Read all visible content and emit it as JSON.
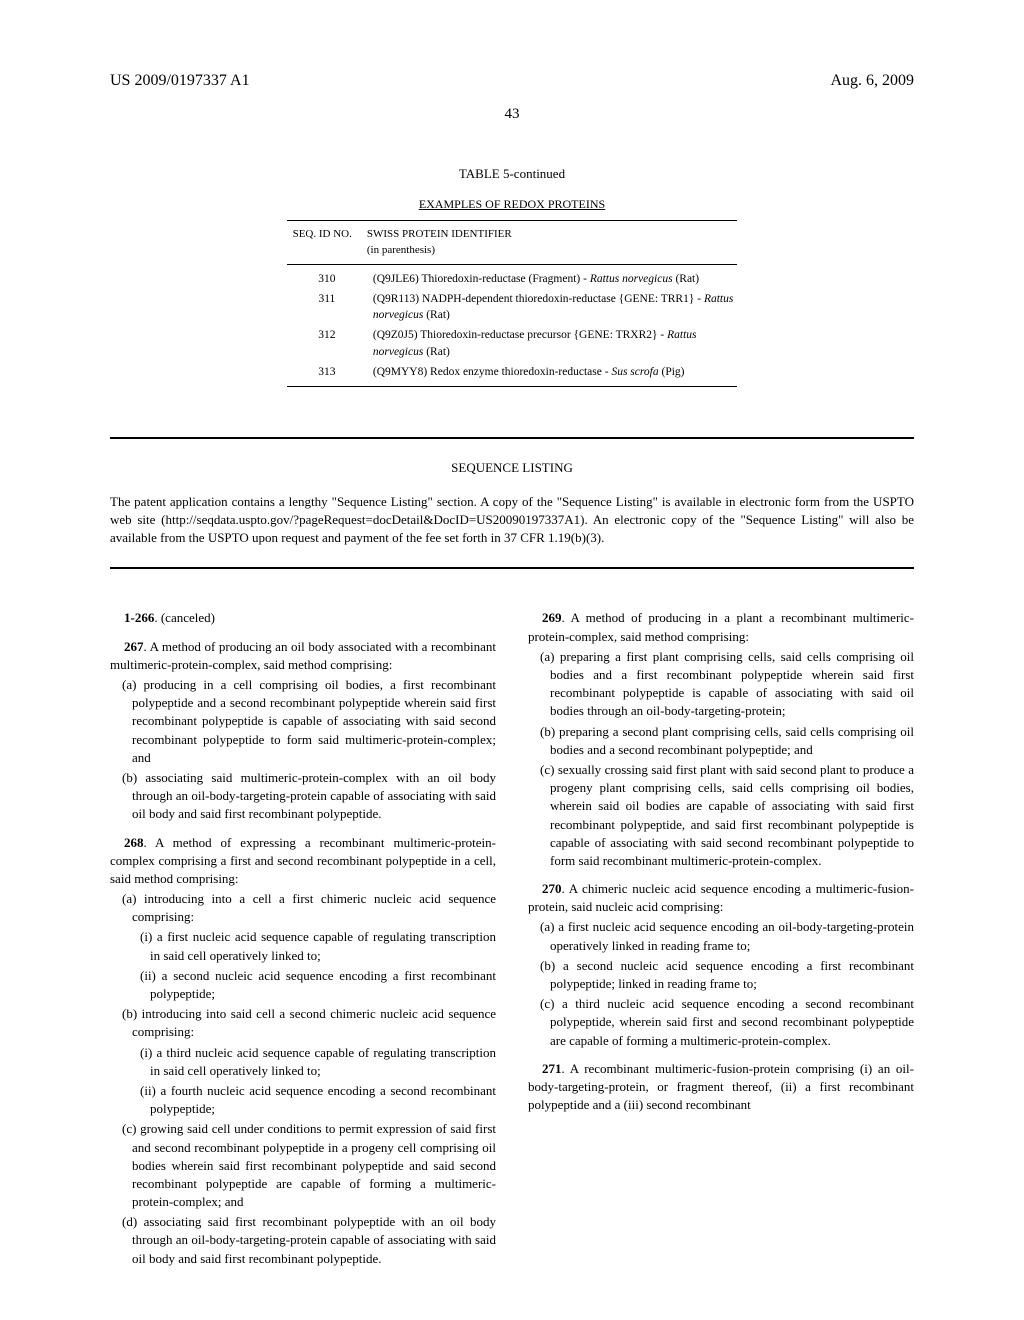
{
  "header": {
    "doc_number": "US 2009/0197337 A1",
    "date": "Aug. 6, 2009",
    "page": "43"
  },
  "table": {
    "title": "TABLE 5-continued",
    "subtitle": "EXAMPLES OF REDOX PROTEINS",
    "head_seq": "SEQ. ID NO.",
    "head_desc_l1": "SWISS PROTEIN IDENTIFIER",
    "head_desc_l2": "(in parenthesis)",
    "rows": [
      {
        "seq": "310",
        "pre": "(Q9JLE6) Thioredoxin-reductase (Fragment) - ",
        "it": "Rattus norvegicus",
        "post": " (Rat)"
      },
      {
        "seq": "311",
        "pre": "(Q9R113) NADPH-dependent thioredoxin-reductase {GENE: TRR1} - ",
        "it": "Rattus norvegicus",
        "post": " (Rat)"
      },
      {
        "seq": "312",
        "pre": "(Q9Z0J5) Thioredoxin-reductase precursor {GENE: TRXR2} - ",
        "it": "Rattus norvegicus",
        "post": " (Rat)"
      },
      {
        "seq": "313",
        "pre": "(Q9MYY8) Redox enzyme thioredoxin-reductase - ",
        "it": "Sus scrofa",
        "post": " (Pig)"
      }
    ]
  },
  "sequence": {
    "heading": "SEQUENCE LISTING",
    "text": "The patent application contains a lengthy \"Sequence Listing\" section. A copy of the \"Sequence Listing\" is available in electronic form from the USPTO web site (http://seqdata.uspto.gov/?pageRequest=docDetail&DocID=US20090197337A1). An electronic copy of the \"Sequence Listing\" will also be available from the USPTO upon request and payment of the fee set forth in 37 CFR 1.19(b)(3)."
  },
  "claims": {
    "c266": {
      "num": "1-266",
      "text": ". (canceled)"
    },
    "c267": {
      "num": "267",
      "lead": ". A method of producing an oil body associated with a recombinant multimeric-protein-complex, said method comprising:",
      "a": "(a) producing in a cell comprising oil bodies, a first recombinant polypeptide and a second recombinant polypeptide wherein said first recombinant polypeptide is capable of associating with said second recombinant polypeptide to form said multimeric-protein-complex; and",
      "b": "(b) associating said multimeric-protein-complex with an oil body through an oil-body-targeting-protein capable of associating with said oil body and said first recombinant polypeptide."
    },
    "c268": {
      "num": "268",
      "lead": ". A method of expressing a recombinant multimeric-protein-complex comprising a first and second recombinant polypeptide in a cell, said method comprising:",
      "a": "(a) introducing into a cell a first chimeric nucleic acid sequence comprising:",
      "ai": "(i) a first nucleic acid sequence capable of regulating transcription in said cell operatively linked to;",
      "aii": "(ii) a second nucleic acid sequence encoding a first recombinant polypeptide;",
      "b": "(b) introducing into said cell a second chimeric nucleic acid sequence comprising:",
      "bi": "(i) a third nucleic acid sequence capable of regulating transcription in said cell operatively linked to;",
      "bii": "(ii) a fourth nucleic acid sequence encoding a second recombinant polypeptide;",
      "c": "(c) growing said cell under conditions to permit expression of said first and second recombinant polypeptide in a progeny cell comprising oil bodies wherein said first recombinant polypeptide and said second recombinant polypeptide are capable of forming a multimeric-protein-complex; and",
      "d": "(d) associating said first recombinant polypeptide with an oil body through an oil-body-targeting-protein capable of associating with said oil body and said first recombinant polypeptide."
    },
    "c269": {
      "num": "269",
      "lead": ". A method of producing in a plant a recombinant multimeric-protein-complex, said method comprising:",
      "a": "(a) preparing a first plant comprising cells, said cells comprising oil bodies and a first recombinant polypeptide wherein said first recombinant polypeptide is capable of associating with said oil bodies through an oil-body-targeting-protein;",
      "b": "(b) preparing a second plant comprising cells, said cells comprising oil bodies and a second recombinant polypeptide; and",
      "c": "(c) sexually crossing said first plant with said second plant to produce a progeny plant comprising cells, said cells comprising oil bodies, wherein said oil bodies are capable of associating with said first recombinant polypeptide, and said first recombinant polypeptide is capable of associating with said second recombinant polypeptide to form said recombinant multimeric-protein-complex."
    },
    "c270": {
      "num": "270",
      "lead": ". A chimeric nucleic acid sequence encoding a multimeric-fusion-protein, said nucleic acid comprising:",
      "a": "(a) a first nucleic acid sequence encoding an oil-body-targeting-protein operatively linked in reading frame to;",
      "b": "(b) a second nucleic acid sequence encoding a first recombinant polypeptide; linked in reading frame to;",
      "c": "(c) a third nucleic acid sequence encoding a second recombinant polypeptide, wherein said first and second recombinant polypeptide are capable of forming a multimeric-protein-complex."
    },
    "c271": {
      "num": "271",
      "lead": ". A recombinant multimeric-fusion-protein comprising (i) an oil-body-targeting-protein, or fragment thereof, (ii) a first recombinant polypeptide and a (iii) second recombinant"
    }
  }
}
